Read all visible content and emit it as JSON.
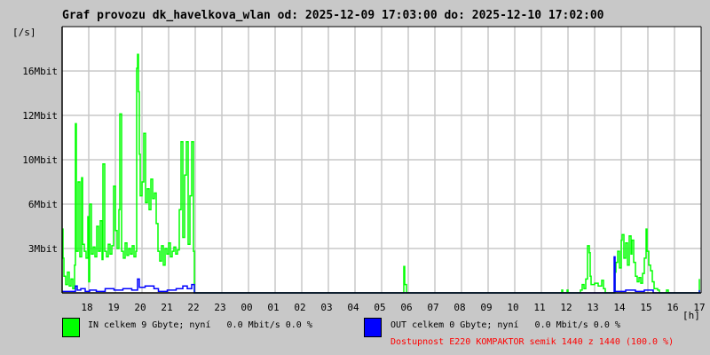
{
  "title": "Graf provozu dk_havelkova_wlan od: 2025-12-09 17:03:00 do: 2025-12-10 17:02:00",
  "colors": {
    "in": "#00ff00",
    "out": "#0000ff",
    "grid": "#c8c8c8",
    "availability": "#ff0000"
  },
  "legend": {
    "in": "IN celkem 9 Gbyte; nyní   0.0 Mbit/s 0.0 %",
    "out": "OUT celkem 0 Gbyte; nyní   0.0 Mbit/s 0.0 %",
    "availability": "Dostupnost E220 KOMPAKTOR semik 1440 z 1440 (100.0 %)"
  },
  "chart_data": {
    "type": "area",
    "title": "Graf provozu dk_havelkova_wlan od: 2025-12-09 17:03:00 do: 2025-12-10 17:02:00",
    "ylabel": "[/s]",
    "xlabel": "[h]",
    "xrange": [
      "2025-12-09 17:03",
      "2025-12-10 17:03"
    ],
    "ylim": [
      0,
      19.2
    ],
    "grid": true,
    "y_unit": "Mbit/s",
    "yticks": [
      {
        "value": 3.2,
        "label": "3Mbit"
      },
      {
        "value": 6.4,
        "label": "6Mbit"
      },
      {
        "value": 9.6,
        "label": "10Mbit"
      },
      {
        "value": 12.8,
        "label": "12Mbit"
      },
      {
        "value": 16.0,
        "label": "16Mbit"
      }
    ],
    "xticks": [
      "18",
      "19",
      "20",
      "21",
      "22",
      "23",
      "00",
      "01",
      "02",
      "03",
      "04",
      "05",
      "06",
      "07",
      "08",
      "09",
      "10",
      "11",
      "12",
      "13",
      "14",
      "15",
      "16",
      "17"
    ],
    "series": [
      {
        "name": "IN",
        "color": "#00ff00",
        "points": [
          [
            "17:03",
            4.6
          ],
          [
            "17:05",
            2.5
          ],
          [
            "17:07",
            1.2
          ],
          [
            "17:11",
            0.6
          ],
          [
            "17:15",
            1.5
          ],
          [
            "17:19",
            0.5
          ],
          [
            "17:23",
            1.0
          ],
          [
            "17:27",
            0.3
          ],
          [
            "17:31",
            2.0
          ],
          [
            "17:33",
            12.2
          ],
          [
            "17:35",
            3.0
          ],
          [
            "17:39",
            8.0
          ],
          [
            "17:43",
            2.6
          ],
          [
            "17:47",
            8.3
          ],
          [
            "17:49",
            3.5
          ],
          [
            "17:53",
            3.0
          ],
          [
            "17:57",
            2.5
          ],
          [
            "18:01",
            5.5
          ],
          [
            "18:03",
            0.8
          ],
          [
            "18:05",
            6.4
          ],
          [
            "18:09",
            2.8
          ],
          [
            "18:13",
            3.3
          ],
          [
            "18:17",
            2.6
          ],
          [
            "18:21",
            4.8
          ],
          [
            "18:25",
            3.0
          ],
          [
            "18:29",
            5.2
          ],
          [
            "18:33",
            2.4
          ],
          [
            "18:35",
            9.3
          ],
          [
            "18:39",
            3.0
          ],
          [
            "18:43",
            2.6
          ],
          [
            "18:47",
            3.5
          ],
          [
            "18:51",
            2.8
          ],
          [
            "18:55",
            3.4
          ],
          [
            "18:59",
            7.7
          ],
          [
            "19:03",
            4.5
          ],
          [
            "19:07",
            3.2
          ],
          [
            "19:11",
            6.0
          ],
          [
            "19:13",
            12.9
          ],
          [
            "19:17",
            3.0
          ],
          [
            "19:21",
            2.5
          ],
          [
            "19:25",
            3.6
          ],
          [
            "19:29",
            2.7
          ],
          [
            "19:33",
            3.2
          ],
          [
            "19:37",
            2.8
          ],
          [
            "19:41",
            3.4
          ],
          [
            "19:45",
            2.6
          ],
          [
            "19:49",
            3.0
          ],
          [
            "19:51",
            16.2
          ],
          [
            "19:53",
            17.2
          ],
          [
            "19:55",
            14.5
          ],
          [
            "19:57",
            10.0
          ],
          [
            "19:59",
            7.0
          ],
          [
            "20:03",
            8.0
          ],
          [
            "20:07",
            11.5
          ],
          [
            "20:11",
            6.5
          ],
          [
            "20:15",
            7.5
          ],
          [
            "20:19",
            6.0
          ],
          [
            "20:23",
            8.2
          ],
          [
            "20:27",
            6.8
          ],
          [
            "20:31",
            7.2
          ],
          [
            "20:35",
            5.0
          ],
          [
            "20:39",
            3.0
          ],
          [
            "20:43",
            2.3
          ],
          [
            "20:47",
            3.4
          ],
          [
            "20:51",
            2.0
          ],
          [
            "20:55",
            3.2
          ],
          [
            "20:59",
            2.8
          ],
          [
            "21:03",
            3.6
          ],
          [
            "21:07",
            2.6
          ],
          [
            "21:11",
            3.0
          ],
          [
            "21:15",
            3.3
          ],
          [
            "21:19",
            2.8
          ],
          [
            "21:23",
            3.1
          ],
          [
            "21:27",
            6.0
          ],
          [
            "21:31",
            10.9
          ],
          [
            "21:35",
            4.0
          ],
          [
            "21:39",
            8.5
          ],
          [
            "21:43",
            10.9
          ],
          [
            "21:47",
            3.5
          ],
          [
            "21:51",
            7.0
          ],
          [
            "21:55",
            10.9
          ],
          [
            "21:59",
            3.0
          ],
          [
            "22:01",
            0
          ],
          [
            "05:51",
            0
          ],
          [
            "05:53",
            1.9
          ],
          [
            "05:55",
            0.6
          ],
          [
            "05:59",
            0
          ],
          [
            "11:49",
            0.2
          ],
          [
            "11:51",
            0
          ],
          [
            "12:01",
            0.2
          ],
          [
            "12:03",
            0
          ],
          [
            "12:31",
            0.2
          ],
          [
            "12:35",
            0.6
          ],
          [
            "12:39",
            0.3
          ],
          [
            "12:43",
            1.0
          ],
          [
            "12:47",
            3.4
          ],
          [
            "12:51",
            2.9
          ],
          [
            "12:53",
            1.2
          ],
          [
            "12:55",
            0.6
          ],
          [
            "13:03",
            0.7
          ],
          [
            "13:11",
            0.5
          ],
          [
            "13:19",
            0.9
          ],
          [
            "13:23",
            0.3
          ],
          [
            "13:27",
            0
          ],
          [
            "13:47",
            0
          ],
          [
            "13:49",
            1.5
          ],
          [
            "13:51",
            2.2
          ],
          [
            "13:55",
            3.0
          ],
          [
            "13:59",
            1.8
          ],
          [
            "14:03",
            3.8
          ],
          [
            "14:05",
            4.2
          ],
          [
            "14:09",
            2.5
          ],
          [
            "14:13",
            3.6
          ],
          [
            "14:17",
            2.0
          ],
          [
            "14:21",
            4.1
          ],
          [
            "14:25",
            2.8
          ],
          [
            "14:27",
            3.8
          ],
          [
            "14:31",
            2.2
          ],
          [
            "14:35",
            1.2
          ],
          [
            "14:39",
            0.8
          ],
          [
            "14:43",
            1.1
          ],
          [
            "14:47",
            0.7
          ],
          [
            "14:51",
            1.4
          ],
          [
            "14:55",
            2.5
          ],
          [
            "14:59",
            4.6
          ],
          [
            "15:01",
            3.0
          ],
          [
            "15:05",
            2.0
          ],
          [
            "15:09",
            1.6
          ],
          [
            "15:13",
            0.8
          ],
          [
            "15:17",
            0.3
          ],
          [
            "15:25",
            0.2
          ],
          [
            "15:29",
            0
          ],
          [
            "15:45",
            0.2
          ],
          [
            "15:49",
            0
          ],
          [
            "16:57",
            0
          ],
          [
            "16:59",
            1.0
          ]
        ]
      },
      {
        "name": "OUT",
        "color": "#0000ff",
        "points": [
          [
            "17:03",
            0.1
          ],
          [
            "17:31",
            0.1
          ],
          [
            "17:33",
            0.5
          ],
          [
            "17:37",
            0.2
          ],
          [
            "17:45",
            0.3
          ],
          [
            "17:55",
            0.1
          ],
          [
            "18:05",
            0.2
          ],
          [
            "18:20",
            0.1
          ],
          [
            "18:40",
            0.3
          ],
          [
            "19:00",
            0.2
          ],
          [
            "19:20",
            0.3
          ],
          [
            "19:40",
            0.2
          ],
          [
            "19:53",
            1.0
          ],
          [
            "19:57",
            0.4
          ],
          [
            "20:10",
            0.5
          ],
          [
            "20:30",
            0.3
          ],
          [
            "20:40",
            0.1
          ],
          [
            "21:00",
            0.2
          ],
          [
            "21:20",
            0.3
          ],
          [
            "21:35",
            0.5
          ],
          [
            "21:45",
            0.3
          ],
          [
            "21:55",
            0.6
          ],
          [
            "22:01",
            0
          ],
          [
            "13:45",
            0
          ],
          [
            "13:47",
            2.6
          ],
          [
            "13:49",
            0.1
          ],
          [
            "14:05",
            0.1
          ],
          [
            "14:13",
            0.2
          ],
          [
            "14:35",
            0.1
          ],
          [
            "14:55",
            0.2
          ],
          [
            "15:05",
            0.2
          ],
          [
            "15:15",
            0
          ],
          [
            "16:59",
            0.2
          ]
        ]
      }
    ]
  }
}
